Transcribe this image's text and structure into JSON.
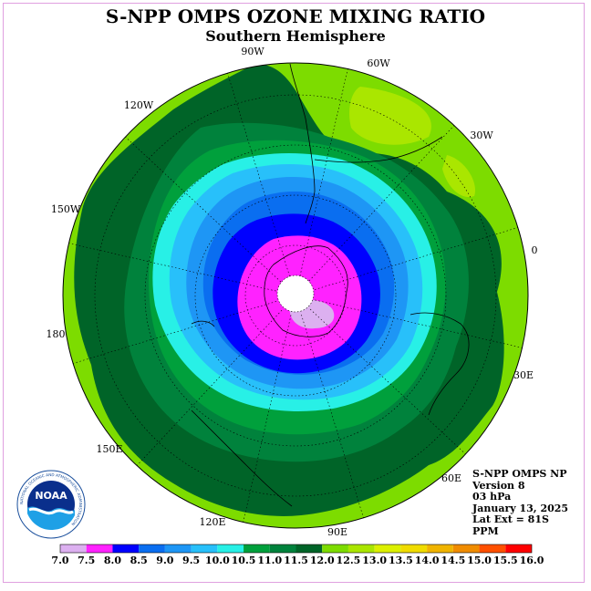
{
  "title": "S-NPP OMPS OZONE MIXING RATIO",
  "subtitle": "Southern Hemisphere",
  "longitude_labels": [
    "90W",
    "60W",
    "120W",
    "30W",
    "150W",
    "0",
    "180",
    "30E",
    "150E",
    "60E",
    "120E",
    "90E"
  ],
  "info": {
    "instrument": "S-NPP OMPS NP",
    "version": "Version 8",
    "level": "03 hPa",
    "date": "January 13, 2025",
    "lat_ext": "Lat Ext = 81S",
    "units": "PPM"
  },
  "logo": {
    "text": "NOAA",
    "ring_text": "NATIONAL OCEANIC AND ATMOSPHERIC ADMINISTRATION"
  },
  "colorbar": {
    "ticks": [
      "7.0",
      "7.5",
      "8.0",
      "8.5",
      "9.0",
      "9.5",
      "10.0",
      "10.5",
      "11.0",
      "11.5",
      "12.0",
      "12.5",
      "13.0",
      "13.5",
      "14.0",
      "14.5",
      "15.0",
      "15.5",
      "16.0"
    ],
    "colors": [
      "#b07ae8",
      "#dcb0f0",
      "#ff22ff",
      "#0000ff",
      "#0a6ef0",
      "#1e96f5",
      "#28c0fa",
      "#28f0e6",
      "#00a03c",
      "#00823c",
      "#006428",
      "#7ddc00",
      "#aae600",
      "#dcf000",
      "#f0dc00",
      "#f0b400",
      "#f08c00",
      "#ff5000",
      "#ff0000",
      "#8b5a3c"
    ]
  },
  "chart_data": {
    "type": "polar-contour-map",
    "projection": "south polar stereographic",
    "variable": "ozone mixing ratio (PPM)",
    "levels": [
      7.0,
      7.5,
      8.0,
      8.5,
      9.0,
      9.5,
      10.0,
      10.5,
      11.0,
      11.5,
      12.0,
      12.5,
      13.0,
      13.5,
      14.0,
      14.5,
      15.0,
      15.5,
      16.0
    ],
    "field_bands_from_pole": [
      {
        "range": "7.5-8.0",
        "color": "#dcb0f0"
      },
      {
        "range": "8.0-8.5",
        "color": "#ff22ff"
      },
      {
        "range": "8.5-9.0",
        "color": "#0000ff"
      },
      {
        "range": "9.0-9.5",
        "color": "#0a6ef0"
      },
      {
        "range": "9.5-10.0",
        "color": "#1e96f5"
      },
      {
        "range": "10.0-10.5",
        "color": "#28c0fa"
      },
      {
        "range": "10.5-11.0",
        "color": "#28f0e6"
      },
      {
        "range": "11.0-11.5",
        "color": "#00a03c"
      },
      {
        "range": "11.5-12.0",
        "color": "#00823c"
      },
      {
        "range": "12.0-12.5",
        "color": "#006428"
      },
      {
        "range": "12.5-13.0",
        "color": "#7ddc00"
      },
      {
        "range": "13.0-13.5",
        "color": "#aae600"
      }
    ]
  }
}
